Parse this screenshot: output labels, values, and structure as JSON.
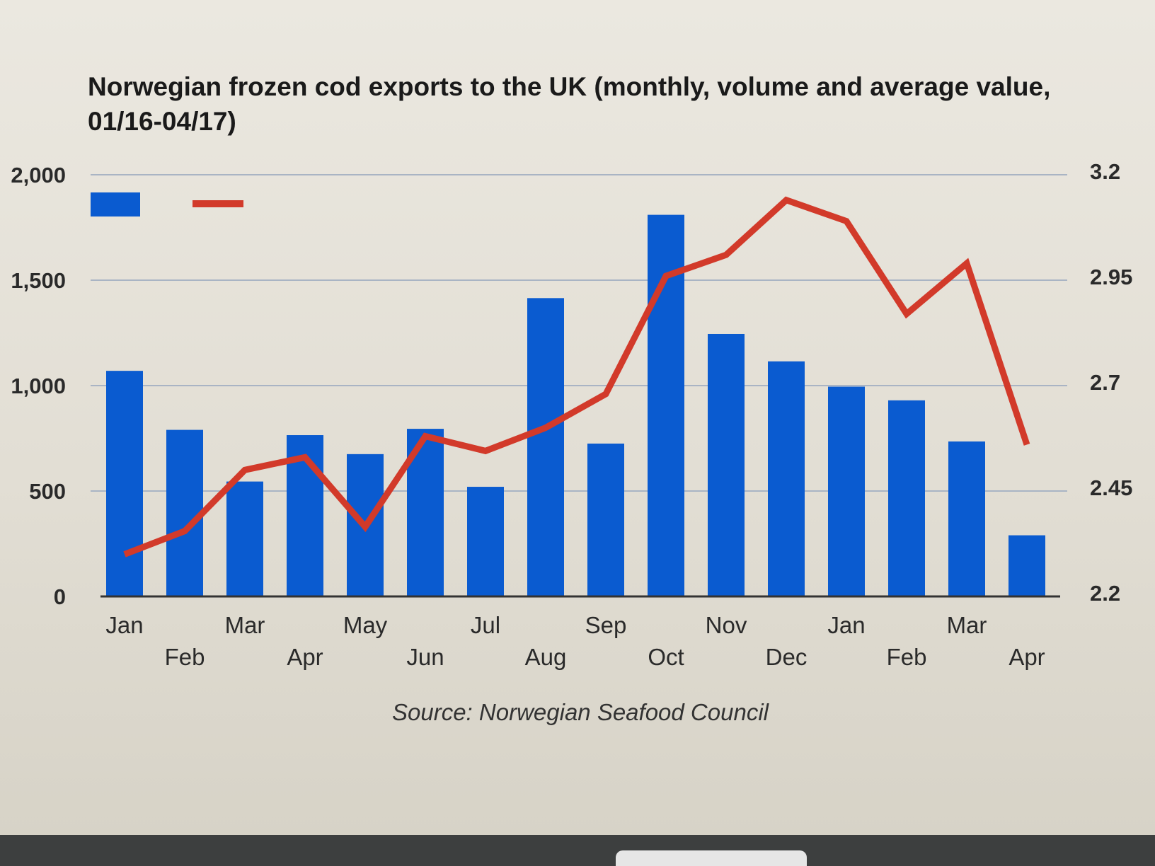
{
  "chart_data": {
    "type": "bar+line",
    "title": "Norwegian frozen cod exports to the UK (monthly, volume and average value, 01/16-04/17)",
    "title_lines": [
      "Norwegian frozen cod exports to the UK (monthly, volume and average value,",
      "01/16-04/17)"
    ],
    "categories": [
      "Jan",
      "Feb",
      "Mar",
      "Apr",
      "May",
      "Jun",
      "Jul",
      "Aug",
      "Sep",
      "Oct",
      "Nov",
      "Dec",
      "Jan",
      "Feb",
      "Mar",
      "Apr"
    ],
    "y_left": {
      "range": [
        0,
        2000
      ],
      "ticks": [
        0,
        500,
        1000,
        1500,
        2000
      ],
      "tick_labels": [
        "0",
        "500",
        "1,000",
        "1,500",
        "2,000"
      ]
    },
    "y_right": {
      "range": [
        2.2,
        3.2
      ],
      "ticks": [
        2.2,
        2.45,
        2.7,
        2.95,
        3.2
      ],
      "tick_labels": [
        "2.2",
        "2.45",
        "2.7",
        "2.95",
        "3.2"
      ]
    },
    "series": [
      {
        "type": "bar",
        "axis": "left",
        "color": "#0a5bd0",
        "values": [
          1070,
          790,
          545,
          765,
          675,
          795,
          520,
          1415,
          725,
          1810,
          1245,
          1115,
          995,
          930,
          735,
          290
        ]
      },
      {
        "type": "line",
        "axis": "right",
        "color": "#d23a2a",
        "values": [
          2.3,
          2.355,
          2.5,
          2.53,
          2.365,
          2.58,
          2.545,
          2.6,
          2.68,
          2.96,
          3.01,
          3.14,
          3.09,
          2.87,
          2.99,
          2.56
        ]
      }
    ],
    "grid": true,
    "legend": "top-left",
    "source": "Source: Norwegian Seafood Council"
  }
}
